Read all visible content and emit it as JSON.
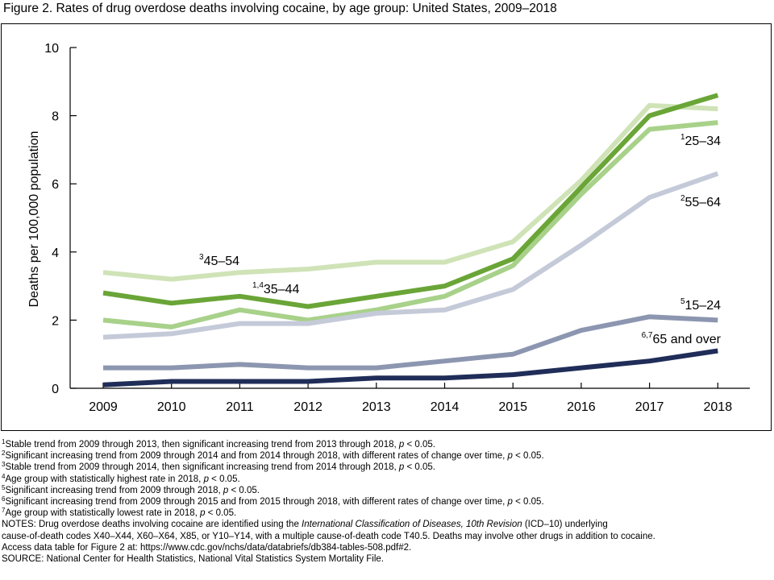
{
  "figure": {
    "title": "Figure 2. Rates of drug overdose deaths involving cocaine, by age group: United States, 2009–2018"
  },
  "chart_data": {
    "type": "line",
    "title": "Figure 2. Rates of drug overdose deaths involving cocaine, by age group: United States, 2009–2018",
    "xlabel": "",
    "ylabel": "Deaths per 100,000 population",
    "x": [
      "2009",
      "2010",
      "2011",
      "2012",
      "2013",
      "2014",
      "2015",
      "2016",
      "2017",
      "2018"
    ],
    "ylim": [
      0,
      10
    ],
    "yticks": [
      0,
      2,
      4,
      6,
      8,
      10
    ],
    "grid": false,
    "legend": "inline labels",
    "series": [
      {
        "name": "45–54",
        "sup": "3",
        "color": "#cfe3b7",
        "label_pos": "above-2011",
        "values": [
          3.4,
          3.2,
          3.4,
          3.5,
          3.7,
          3.7,
          4.3,
          6.1,
          8.3,
          8.2
        ]
      },
      {
        "name": "25–34",
        "sup": "1",
        "color": "#a8d18a",
        "label_pos": "right-2018",
        "values": [
          2.0,
          1.8,
          2.3,
          2.0,
          2.3,
          2.7,
          3.6,
          5.7,
          7.6,
          7.8
        ]
      },
      {
        "name": "55–64",
        "sup": "2",
        "color": "#c5cad9",
        "label_pos": "right-2018",
        "values": [
          1.5,
          1.6,
          1.9,
          1.9,
          2.2,
          2.3,
          2.9,
          4.2,
          5.6,
          6.3
        ]
      },
      {
        "name": "35–44",
        "sup": "1,4",
        "color": "#6aa537",
        "label_pos": "above-2012",
        "values": [
          2.8,
          2.5,
          2.7,
          2.4,
          2.7,
          3.0,
          3.8,
          5.9,
          8.0,
          8.6
        ]
      },
      {
        "name": "15–24",
        "sup": "5",
        "color": "#8c96b0",
        "label_pos": "right-2018",
        "values": [
          0.6,
          0.6,
          0.7,
          0.6,
          0.6,
          0.8,
          1.0,
          1.7,
          2.1,
          2.0
        ]
      },
      {
        "name": "65 and over",
        "sup": "6,7",
        "color": "#1f2d58",
        "label_pos": "right-2018",
        "values": [
          0.1,
          0.2,
          0.2,
          0.2,
          0.3,
          0.3,
          0.4,
          0.6,
          0.8,
          1.1
        ]
      }
    ]
  },
  "footnotes": [
    {
      "sup": "1",
      "text": "Stable trend from 2009 through 2013, then significant increasing trend from 2013 through 2018, ",
      "p": "p",
      "tail": " < 0.05."
    },
    {
      "sup": "2",
      "text": "Significant increasing trend from 2009 through 2014 and from 2014 through 2018, with different rates of change over time, ",
      "p": "p",
      "tail": " < 0.05."
    },
    {
      "sup": "3",
      "text": "Stable trend from 2009 through 2014, then significant increasing trend from 2014 through 2018, ",
      "p": "p",
      "tail": " < 0.05."
    },
    {
      "sup": "4",
      "text": "Age group with statistically highest rate in 2018, ",
      "p": "p",
      "tail": " < 0.05."
    },
    {
      "sup": "5",
      "text": "Significant increasing trend from 2009 through 2018, ",
      "p": "p",
      "tail": " < 0.05."
    },
    {
      "sup": "6",
      "text": "Significant increasing trend from 2009 through 2015 and from 2015 through 2018, with different rates of change over time, ",
      "p": "p",
      "tail": " < 0.05."
    },
    {
      "sup": "7",
      "text": "Age group with statistically lowest rate in 2018, ",
      "p": "p",
      "tail": " < 0.05."
    }
  ],
  "notes": {
    "prefix": "NOTES: Drug overdose deaths involving cocaine are identified using the ",
    "italic": "International Classification of Diseases, 10th Revision",
    "suffix": " (ICD–10) underlying",
    "line2": "cause-of-death codes X40–X44, X60–X64, X85, or Y10–Y14, with a multiple cause-of-death code T40.5. Deaths may involve other drugs in addition to cocaine.",
    "line3": "Access data table for Figure 2 at: https://www.cdc.gov/nchs/data/databriefs/db384-tables-508.pdf#2."
  },
  "source": "SOURCE: National Center for Health Statistics, National Vital Statistics System Mortality File."
}
